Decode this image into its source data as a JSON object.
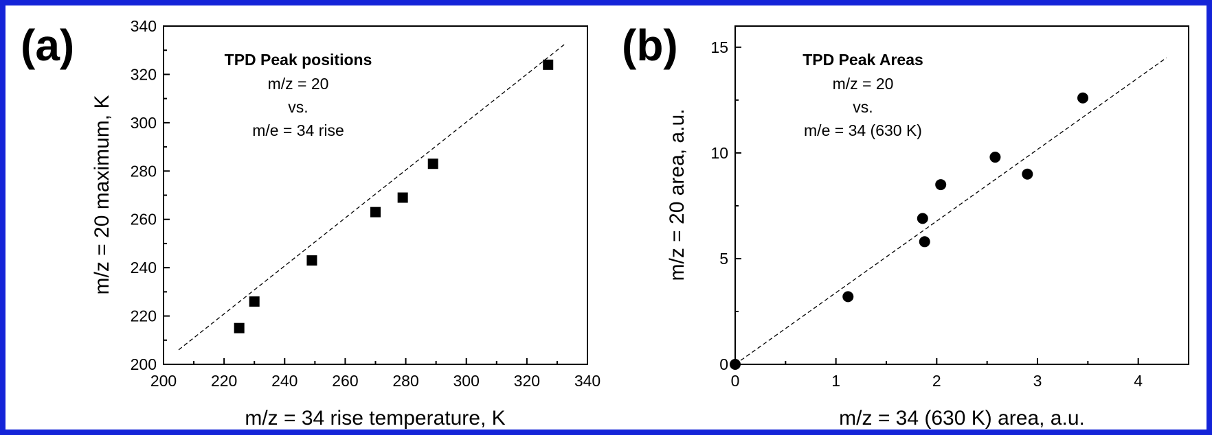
{
  "border_color": "#1424d8",
  "chart_data": [
    {
      "type": "scatter",
      "panel_label": "(a)",
      "title": "",
      "xlabel": "m/z = 34 rise temperature, K",
      "ylabel": "m/z = 20 maximum, K",
      "xlim": [
        200,
        340
      ],
      "ylim": [
        200,
        340
      ],
      "xticks": [
        "200",
        "220",
        "240",
        "260",
        "280",
        "300",
        "320",
        "340"
      ],
      "yticks": [
        "200",
        "220",
        "240",
        "260",
        "280",
        "300",
        "320",
        "340"
      ],
      "x_tick_values": [
        200,
        220,
        240,
        260,
        280,
        300,
        320,
        340
      ],
      "y_tick_values": [
        200,
        220,
        240,
        260,
        280,
        300,
        320,
        340
      ],
      "grid": false,
      "marker": "square",
      "annotations": [
        "TPD Peak positions",
        "m/z = 20",
        "vs.",
        "m/e = 34 rise"
      ],
      "series": [
        {
          "x": [
            225,
            230,
            249,
            270,
            279,
            289,
            327
          ],
          "y": [
            215,
            226,
            243,
            263,
            269,
            283,
            324
          ]
        }
      ],
      "trend_line": {
        "x": [
          205,
          333
        ],
        "y": [
          206,
          333
        ]
      }
    },
    {
      "type": "scatter",
      "panel_label": "(b)",
      "title": "",
      "xlabel": "m/z = 34 (630 K) area, a.u.",
      "ylabel": "m/z = 20 area, a.u.",
      "xlim": [
        0,
        4.5
      ],
      "ylim": [
        0,
        16
      ],
      "xticks": [
        "0",
        "1",
        "2",
        "3",
        "4"
      ],
      "yticks": [
        "0",
        "5",
        "10",
        "15"
      ],
      "x_tick_values": [
        0,
        1,
        2,
        3,
        4
      ],
      "y_tick_values": [
        0,
        5,
        10,
        15
      ],
      "grid": false,
      "marker": "circle",
      "annotations": [
        "TPD Peak Areas",
        "m/z = 20",
        "vs.",
        "m/e = 34 (630 K)"
      ],
      "series": [
        {
          "x": [
            0,
            1.12,
            1.86,
            1.88,
            2.04,
            2.58,
            2.9,
            3.45
          ],
          "y": [
            0,
            3.2,
            6.9,
            5.8,
            8.5,
            9.8,
            9.0,
            12.6
          ]
        }
      ],
      "trend_line": {
        "x": [
          0,
          4.28
        ],
        "y": [
          0,
          14.5
        ]
      }
    }
  ]
}
